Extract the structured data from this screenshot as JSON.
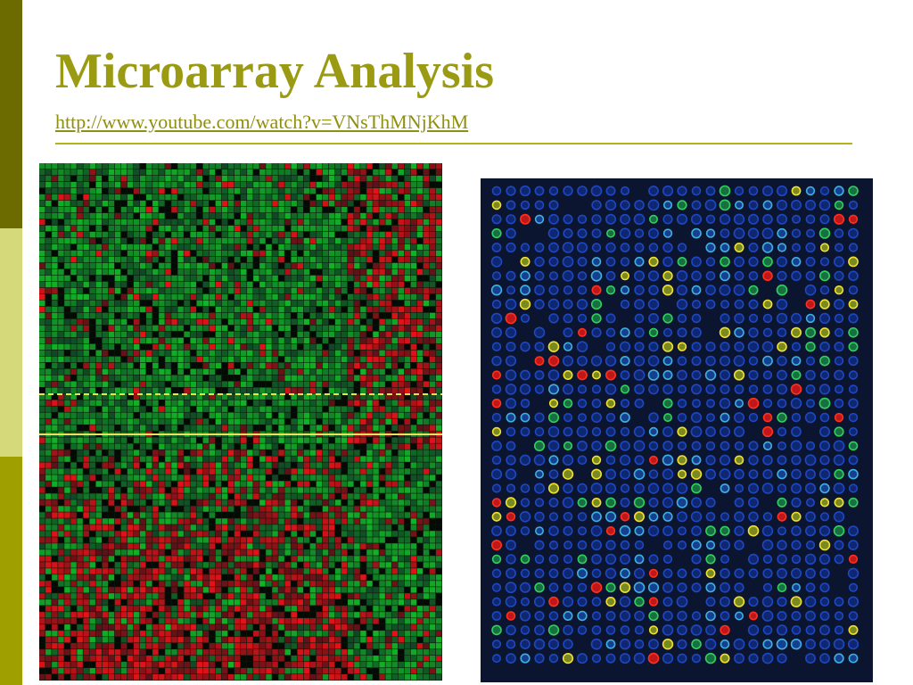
{
  "slide": {
    "title": "Microarray Analysis",
    "link": "http://www.youtube.com/watch?v=VNsThMNjKhM"
  },
  "colors": {
    "accent_dark": "#6b6b00",
    "accent_light": "#d6d97a",
    "accent_mid": "#9fa000",
    "title": "#9a9a13",
    "heatmap_green": "#1f9a3a",
    "heatmap_red": "#c0202a",
    "array_background": "#0c1530",
    "array_spot_blue": "#1a3fb0"
  },
  "images": {
    "heatmap": {
      "description_name": "gene-expression-heatmap"
    },
    "microarray": {
      "description_name": "microarray-chip-image"
    }
  }
}
